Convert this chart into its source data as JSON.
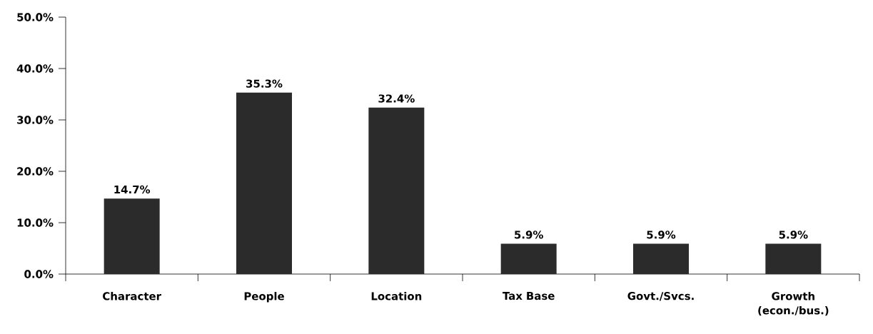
{
  "chart_data": {
    "type": "bar",
    "categories": [
      "Character",
      "People",
      "Location",
      "Tax Base",
      "Govt./Svcs.",
      "Growth (econ./bus.)"
    ],
    "values": [
      14.7,
      35.3,
      32.4,
      5.9,
      5.9,
      5.9
    ],
    "value_labels": [
      "14.7%",
      "35.3%",
      "32.4%",
      "5.9%",
      "5.9%",
      "5.9%"
    ],
    "color": "#2b2b2b",
    "ylim": [
      0,
      50
    ],
    "yticks": [
      {
        "value": 0,
        "label": "0.0%"
      },
      {
        "value": 10,
        "label": "10.0%"
      },
      {
        "value": 20,
        "label": "20.0%"
      },
      {
        "value": 30,
        "label": "30.0%"
      },
      {
        "value": 40,
        "label": "40.0%"
      },
      {
        "value": 50,
        "label": "50.0%"
      }
    ],
    "grid": false
  }
}
